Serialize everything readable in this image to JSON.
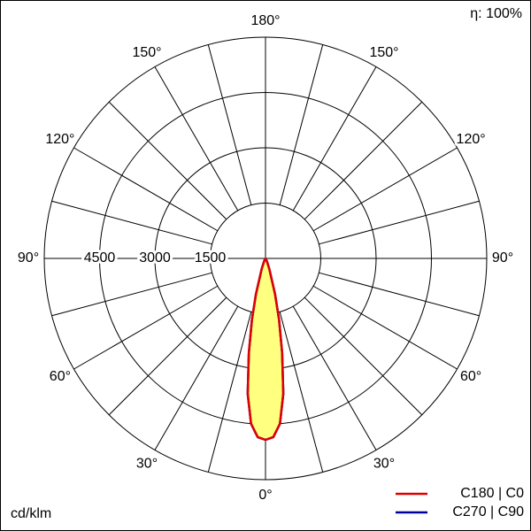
{
  "chart_data": {
    "type": "polar",
    "units": "cd/klm",
    "efficiency": "η: 100%",
    "angles": [
      0,
      2.5,
      5,
      7.5,
      10,
      12.5,
      15,
      20,
      25,
      30,
      40,
      50,
      60,
      70,
      80,
      90
    ],
    "series": [
      {
        "name": "C270 | C90",
        "color": "#00009c",
        "values": [
          4920,
          4850,
          4500,
          3700,
          2600,
          1700,
          1000,
          300,
          100,
          50,
          20,
          0,
          0,
          0,
          0,
          0
        ]
      },
      {
        "name": "C180 | C0",
        "color": "#e00000",
        "values": [
          4920,
          4850,
          4500,
          3700,
          2600,
          1700,
          1000,
          300,
          100,
          50,
          20,
          0,
          0,
          0,
          0,
          0
        ]
      }
    ],
    "fill_color": "#ffff80",
    "rlim": [
      0,
      6000
    ],
    "rticks": [
      1500,
      3000,
      4500
    ],
    "angle_ticks": [
      {
        "value": 0,
        "label": "0°"
      },
      {
        "value": 30,
        "label": "30°"
      },
      {
        "value": 60,
        "label": "60°"
      },
      {
        "value": 90,
        "label": "90°"
      },
      {
        "value": 120,
        "label": "120°"
      },
      {
        "value": 150,
        "label": "150°"
      },
      {
        "value": 180,
        "label": "180°"
      }
    ]
  }
}
